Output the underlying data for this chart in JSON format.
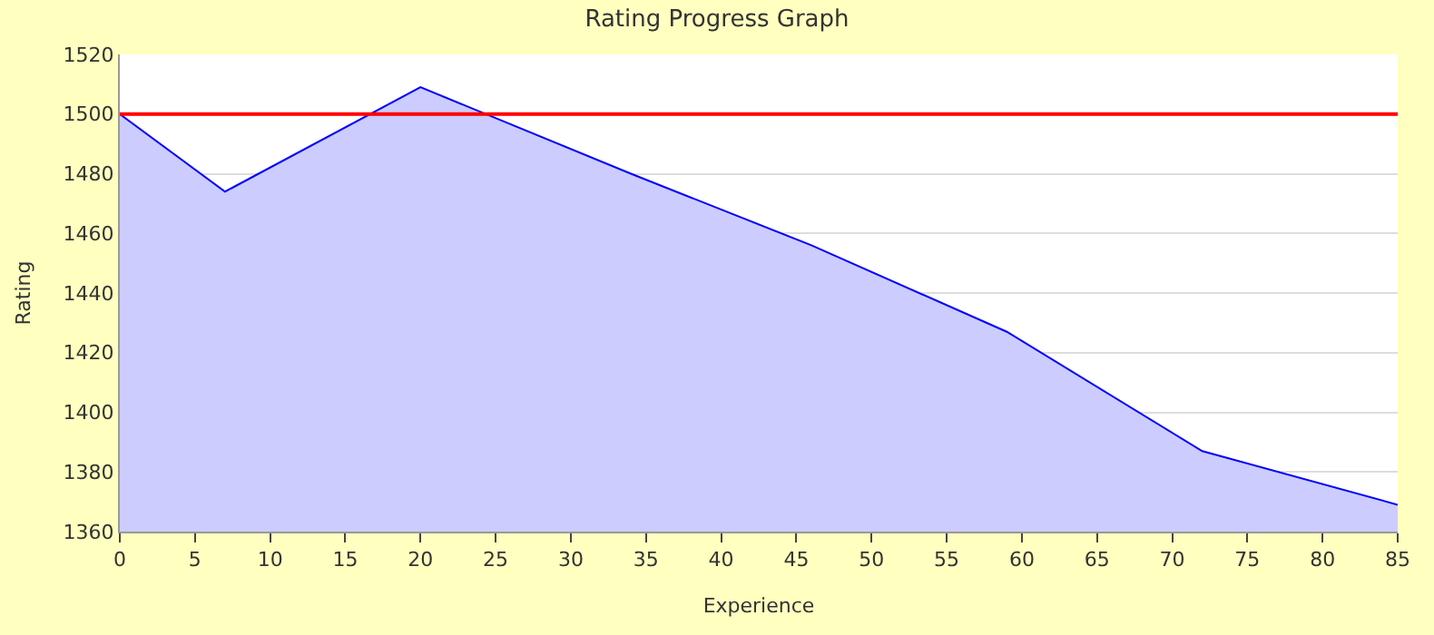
{
  "chart_data": {
    "type": "area",
    "title": "Rating Progress Graph",
    "xlabel": "Experience",
    "ylabel": "Rating",
    "x": [
      0,
      7,
      20,
      34,
      46,
      59,
      72,
      85
    ],
    "series": [
      {
        "color": "#0000ff",
        "values": [
          1500,
          1474,
          1509,
          1480,
          1456,
          1427,
          1387,
          1369
        ]
      }
    ],
    "xlim": [
      0,
      85
    ],
    "xticks": [
      0,
      5,
      10,
      15,
      20,
      25,
      30,
      35,
      40,
      45,
      50,
      55,
      60,
      65,
      70,
      75,
      80,
      85
    ],
    "ylim": [
      1360,
      1520
    ],
    "yticks": [
      1360,
      1380,
      1400,
      1420,
      1440,
      1460,
      1480,
      1500,
      1520
    ],
    "ref_lines": [
      {
        "axis": "y",
        "value": 1500,
        "color": "#ff0000"
      }
    ],
    "grid": "y"
  }
}
